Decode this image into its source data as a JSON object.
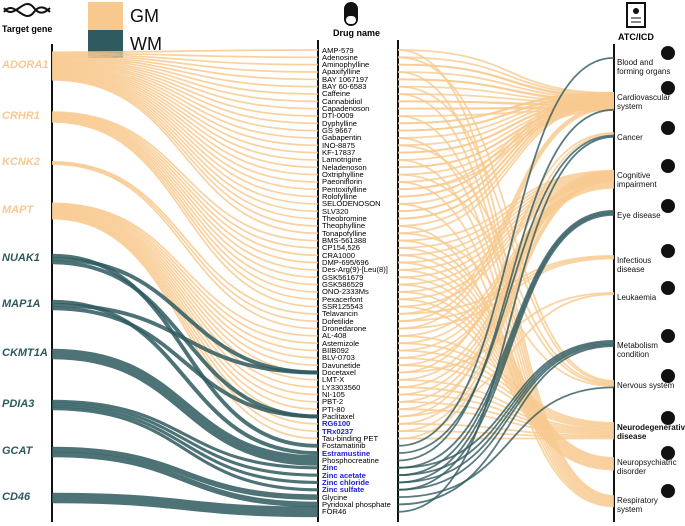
{
  "header": {
    "target_gene": "Target gene",
    "drug_name": "Drug name",
    "atc": "ATC/ICD"
  },
  "legend": [
    {
      "label": "GM",
      "color": "#f8c98e"
    },
    {
      "label": "WM",
      "color": "#2f5a5f"
    }
  ],
  "genes": [
    {
      "label": "ADORA1",
      "group": "GM"
    },
    {
      "label": "CRHR1",
      "group": "GM"
    },
    {
      "label": "KCNK2",
      "group": "GM"
    },
    {
      "label": "MAPT",
      "group": "GM"
    },
    {
      "label": "NUAK1",
      "group": "WM"
    },
    {
      "label": "MAP1A",
      "group": "WM"
    },
    {
      "label": "CKMT1A",
      "group": "WM"
    },
    {
      "label": "PDIA3",
      "group": "WM"
    },
    {
      "label": "GCAT",
      "group": "WM"
    },
    {
      "label": "CD46",
      "group": "WM"
    }
  ],
  "drugs": [
    {
      "label": "AMP-579"
    },
    {
      "label": "Adenosine"
    },
    {
      "label": "Aminophylline"
    },
    {
      "label": "Apaxifylline"
    },
    {
      "label": "BAY 1067197"
    },
    {
      "label": "BAY 60-6583"
    },
    {
      "label": "Caffeine"
    },
    {
      "label": "Cannabidiol"
    },
    {
      "label": "Capadenoson"
    },
    {
      "label": "DTI-0009"
    },
    {
      "label": "Dyphylline"
    },
    {
      "label": "GS 9667"
    },
    {
      "label": "Gabapentin"
    },
    {
      "label": "INO-8875"
    },
    {
      "label": "KF-17837"
    },
    {
      "label": "Lamotrigine"
    },
    {
      "label": "Neladenoson"
    },
    {
      "label": "Oxtriphylline"
    },
    {
      "label": "Paeoniflorin"
    },
    {
      "label": "Pentoxifylline"
    },
    {
      "label": "Rolofylline"
    },
    {
      "label": "SELODENOSON"
    },
    {
      "label": "SLV320"
    },
    {
      "label": "Theobromine"
    },
    {
      "label": "Theophylline"
    },
    {
      "label": "Tonapofylline"
    },
    {
      "label": "BMS-561388"
    },
    {
      "label": "CP154,526"
    },
    {
      "label": "CRA1000"
    },
    {
      "label": "DMP-695/696"
    },
    {
      "label": "Des-Arg(9)-[Leu(8)]"
    },
    {
      "label": "GSK561679"
    },
    {
      "label": "GSK586529"
    },
    {
      "label": "ONO-2333Ms"
    },
    {
      "label": "Pexacerfont"
    },
    {
      "label": "SSR125543"
    },
    {
      "label": "Telavancin"
    },
    {
      "label": "Dofetilide"
    },
    {
      "label": "Dronedarone"
    },
    {
      "label": "AL-408"
    },
    {
      "label": "Astemizole"
    },
    {
      "label": "BIIB092"
    },
    {
      "label": "BLV-0703"
    },
    {
      "label": "Davunetide"
    },
    {
      "label": "Docetaxel"
    },
    {
      "label": "LMT-X"
    },
    {
      "label": "LY3303560"
    },
    {
      "label": "NI-105"
    },
    {
      "label": "PBT-2"
    },
    {
      "label": "PTI-80"
    },
    {
      "label": "Paclitaxel"
    },
    {
      "label": "RG6100",
      "color": "#1c1cd8"
    },
    {
      "label": "TRx0237",
      "color": "#1c1cd8"
    },
    {
      "label": "Tau-binding PET"
    },
    {
      "label": "Fostamatinib"
    },
    {
      "label": "Estramustine",
      "color": "#1c1cd8"
    },
    {
      "label": "Phosphocreatine"
    },
    {
      "label": "Zinc",
      "color": "#1c1cd8"
    },
    {
      "label": "Zinc acetate",
      "color": "#1c1cd8"
    },
    {
      "label": "Zinc chloride",
      "color": "#1c1cd8"
    },
    {
      "label": "Zinc sulfate",
      "color": "#1c1cd8"
    },
    {
      "label": "Glycine"
    },
    {
      "label": "Pyridoxal phosphate"
    },
    {
      "label": "FOR46"
    }
  ],
  "atc": [
    {
      "label": "Blood and forming organs"
    },
    {
      "label": "Cardiovascular system"
    },
    {
      "label": "Cancer"
    },
    {
      "label": "Cognitive impairment"
    },
    {
      "label": "Eye disease"
    },
    {
      "label": "Infectious disease"
    },
    {
      "label": "Leukaemia"
    },
    {
      "label": "Metabolism condition"
    },
    {
      "label": "Nervous system"
    },
    {
      "label": "Neurodegenerative disease",
      "bold": true
    },
    {
      "label": "Neuropsychiatric disorder"
    },
    {
      "label": "Respiratory system"
    }
  ]
}
